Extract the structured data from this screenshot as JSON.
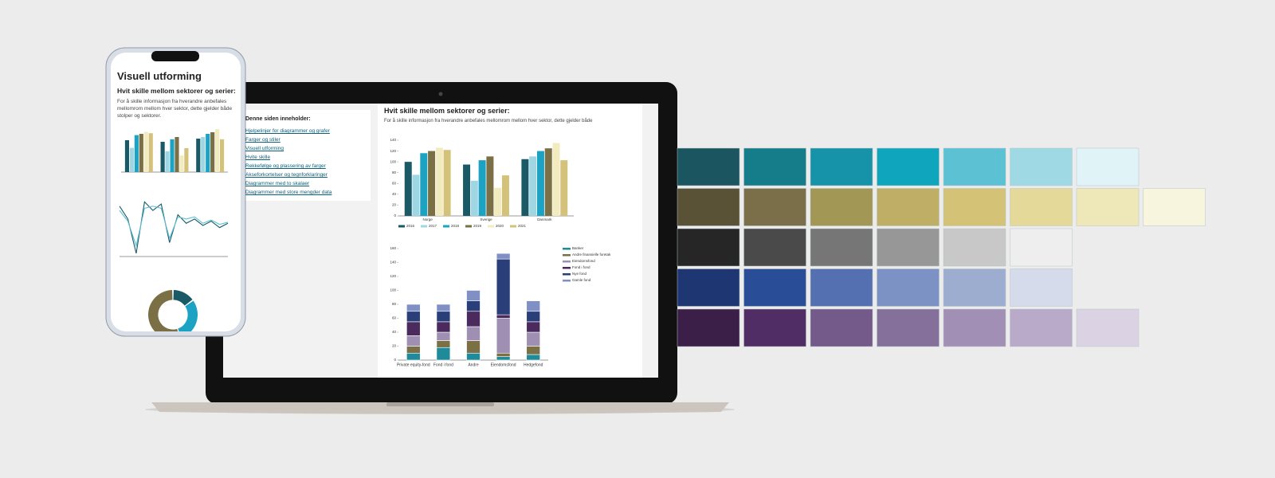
{
  "phone": {
    "title": "Visuell utforming",
    "heading": "Hvit skille mellom sektorer og serier:",
    "text": "For å skille informasjon fra hverandre anbefales mellomrom mellom hver sektor, dette gjelder både stolper og sektorer."
  },
  "laptop": {
    "toc_title": "Denne siden inneholder:",
    "toc_links": [
      "Hjelpelinjer for diagrammer og grafer",
      "Farger og stiler",
      "Visuell utforming",
      "Hvite skille",
      "Rekkefølge og plassering av farger",
      "Akseforkortelser og tegnforklaringer",
      "Diagrammer med to skalaer",
      "Diagrammer med store mengder data"
    ],
    "heading": "Hvit skille mellom sektorer og serier:",
    "text": "For å skille informasjon fra hverandre anbefales mellomrom mellom hver sektor, dette gjelder både"
  },
  "chart_data": [
    {
      "type": "bar",
      "categories": [
        "Norge",
        "Sverige",
        "Danmark"
      ],
      "series": [
        {
          "name": "2016",
          "color": "#1a5a66",
          "values": [
            100,
            95,
            105
          ]
        },
        {
          "name": "2017",
          "color": "#9fd6e4",
          "values": [
            76,
            65,
            110
          ]
        },
        {
          "name": "2018",
          "color": "#1ca3c4",
          "values": [
            116,
            103,
            120
          ]
        },
        {
          "name": "2019",
          "color": "#7a6f45",
          "values": [
            120,
            110,
            125
          ]
        },
        {
          "name": "2020",
          "color": "#f3ebc0",
          "values": [
            126,
            52,
            135
          ]
        },
        {
          "name": "2021",
          "color": "#d4c17a",
          "values": [
            122,
            75,
            103
          ]
        }
      ],
      "ylim": [
        0,
        140
      ],
      "yticks": [
        0,
        20,
        40,
        60,
        80,
        100,
        120,
        140
      ]
    },
    {
      "type": "stacked-bar",
      "categories": [
        "Private equity-fond",
        "Fond i fond",
        "Andre",
        "Eiendomsfond",
        "Hedgefond"
      ],
      "series": [
        {
          "name": "Banker",
          "color": "#1f8a99",
          "values": [
            10,
            18,
            10,
            5,
            8
          ]
        },
        {
          "name": "Andre finansielle foretak",
          "color": "#7a6f45",
          "values": [
            10,
            10,
            18,
            5,
            12
          ]
        },
        {
          "name": "Eiendomsfond",
          "color": "#9e8fb3",
          "values": [
            15,
            12,
            20,
            50,
            20
          ]
        },
        {
          "name": "Fond i fond",
          "color": "#4b2b5e",
          "values": [
            20,
            15,
            22,
            5,
            15
          ]
        },
        {
          "name": "Nye fond",
          "color": "#2a3f7a",
          "values": [
            15,
            15,
            15,
            80,
            15
          ]
        },
        {
          "name": "Gamle fond",
          "color": "#8190c4",
          "values": [
            10,
            10,
            15,
            8,
            15
          ]
        }
      ],
      "ylim": [
        0,
        160
      ],
      "yticks": [
        0,
        20,
        40,
        60,
        80,
        100,
        120,
        140,
        160
      ]
    },
    {
      "type": "line",
      "categories": [
        null,
        null,
        null,
        null,
        null,
        null,
        null,
        null,
        null,
        null,
        null,
        null,
        null,
        null
      ],
      "series": [
        {
          "color": "#1a5a66",
          "values": [
            22,
            10,
            -22,
            26,
            18,
            24,
            -12,
            14,
            6,
            10,
            4,
            8,
            2,
            6
          ]
        },
        {
          "color": "#5fbfd4",
          "values": [
            18,
            8,
            -15,
            20,
            22,
            20,
            -8,
            12,
            10,
            12,
            6,
            9,
            5,
            7
          ]
        }
      ],
      "ylim": [
        -25,
        30
      ]
    },
    {
      "type": "pie",
      "values": [
        15,
        30,
        55
      ],
      "colors": [
        "#1a5a66",
        "#1ca3c4",
        "#7a6f45"
      ]
    }
  ],
  "palette": [
    [
      "#1b5560",
      "#157d8a",
      "#1693a8",
      "#0fa5bd",
      "#5cc1d3",
      "#9fdae4",
      "#e0f3f7"
    ],
    [
      "#5a5236",
      "#7a6f48",
      "#a39755",
      "#bfae66",
      "#d4c277",
      "#e4d998",
      "#eee8b8",
      "#f8f5de"
    ],
    [
      "#262626",
      "#4a4a4a",
      "#767676",
      "#979797",
      "#c8c8c8",
      "#eeeeee"
    ],
    [
      "#1e3773",
      "#2a4d98",
      "#5470b0",
      "#7c92c4",
      "#9dadd0",
      "#d5dbea"
    ],
    [
      "#3b1f48",
      "#502d65",
      "#745a8a",
      "#85709c",
      "#a28fb6",
      "#b9aac9",
      "#dbd3e3"
    ]
  ]
}
